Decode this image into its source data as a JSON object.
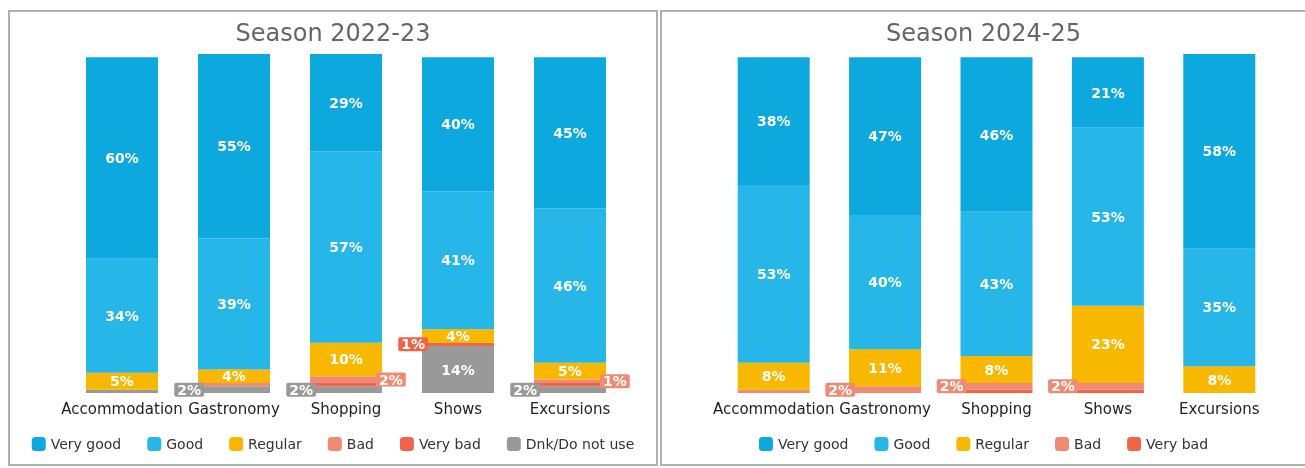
{
  "chart_data": [
    {
      "type": "bar",
      "title": "Season 2022-23",
      "stacked": true,
      "legend": "bottom",
      "categories": [
        "Accommodation",
        "Gastronomy",
        "Shopping",
        "Shows",
        "Excursions"
      ],
      "series": [
        {
          "name": "Dnk/Do not use",
          "color": "#999999",
          "values": [
            1,
            2,
            2,
            14,
            2
          ],
          "value_labels": [
            null,
            "2%",
            "2%",
            "14%",
            "2%"
          ]
        },
        {
          "name": "Very bad",
          "color": "#ef6549",
          "values": [
            null,
            null,
            1,
            1,
            1
          ],
          "value_labels": [
            null,
            null,
            null,
            "1%",
            null
          ]
        },
        {
          "name": "Bad",
          "color": "#f08a73",
          "values": [
            null,
            1,
            2,
            null,
            1
          ],
          "value_labels": [
            null,
            null,
            "2%",
            null,
            "1%"
          ]
        },
        {
          "name": "Regular",
          "color": "#f9b800",
          "values": [
            5,
            4,
            10,
            4,
            5
          ],
          "value_labels": [
            "5%",
            "4%",
            "10%",
            "4%",
            "5%"
          ]
        },
        {
          "name": "Good",
          "color": "#27b6e8",
          "values": [
            34,
            39,
            57,
            41,
            46
          ],
          "value_labels": [
            "34%",
            "39%",
            "57%",
            "41%",
            "46%"
          ]
        },
        {
          "name": "Very good",
          "color": "#0ca8de",
          "values": [
            60,
            55,
            29,
            40,
            45
          ],
          "value_labels": [
            "60%",
            "55%",
            "29%",
            "40%",
            "45%"
          ]
        }
      ]
    },
    {
      "type": "bar",
      "title": "Season 2024-25",
      "stacked": true,
      "legend": "bottom",
      "categories": [
        "Accommodation",
        "Gastronomy",
        "Shopping",
        "Shows",
        "Excursions"
      ],
      "series": [
        {
          "name": "Very bad",
          "color": "#ef6549",
          "values": [
            null,
            null,
            1,
            1,
            null
          ],
          "value_labels": [
            null,
            null,
            null,
            null,
            null
          ]
        },
        {
          "name": "Bad",
          "color": "#f08a73",
          "values": [
            1,
            2,
            2,
            2,
            null
          ],
          "value_labels": [
            null,
            "2%",
            "2%",
            "2%",
            null
          ]
        },
        {
          "name": "Regular",
          "color": "#f9b800",
          "values": [
            8,
            11,
            8,
            23,
            8
          ],
          "value_labels": [
            "8%",
            "11%",
            "8%",
            "23%",
            "8%"
          ]
        },
        {
          "name": "Good",
          "color": "#27b6e8",
          "values": [
            53,
            40,
            43,
            53,
            35
          ],
          "value_labels": [
            "53%",
            "40%",
            "43%",
            "53%",
            "35%"
          ]
        },
        {
          "name": "Very good",
          "color": "#0ca8de",
          "values": [
            38,
            47,
            46,
            21,
            58
          ],
          "value_labels": [
            "38%",
            "47%",
            "46%",
            "21%",
            "58%"
          ]
        }
      ]
    }
  ]
}
